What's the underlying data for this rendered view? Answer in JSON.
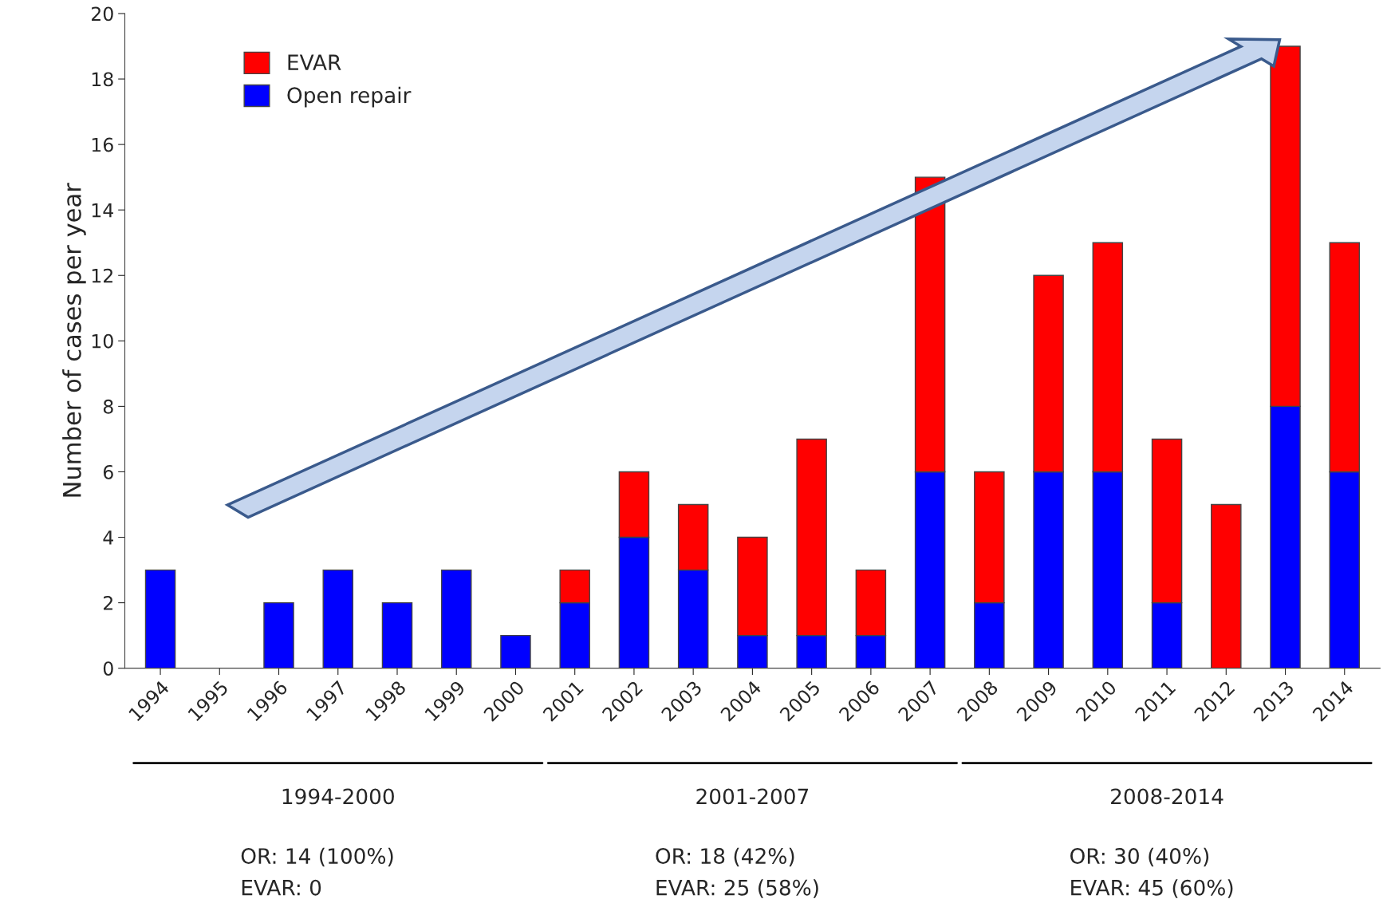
{
  "chart_data": {
    "type": "bar",
    "stacked": true,
    "categories": [
      "1994",
      "1995",
      "1996",
      "1997",
      "1998",
      "1999",
      "2000",
      "2001",
      "2002",
      "2003",
      "2004",
      "2005",
      "2006",
      "2007",
      "2008",
      "2009",
      "2010",
      "2011",
      "2012",
      "2013",
      "2014"
    ],
    "series": [
      {
        "name": "Open repair",
        "color": "#0000ff",
        "values": [
          3,
          0,
          2,
          3,
          2,
          3,
          1,
          2,
          4,
          3,
          1,
          1,
          1,
          6,
          2,
          6,
          6,
          2,
          0,
          8,
          6
        ]
      },
      {
        "name": "EVAR",
        "color": "#ff0000",
        "values": [
          0,
          0,
          0,
          0,
          0,
          0,
          0,
          1,
          2,
          2,
          3,
          6,
          2,
          9,
          4,
          6,
          7,
          5,
          5,
          11,
          7
        ]
      }
    ],
    "ylabel": "Number of cases per year",
    "ylim": [
      0,
      20
    ],
    "yticks": [
      0,
      2,
      4,
      6,
      8,
      10,
      12,
      14,
      16,
      18,
      20
    ],
    "grid": false,
    "legend": "top left",
    "annotations": [
      "1994-2000",
      "OR: 14 (100%)",
      "EVAR: 0",
      "2001-2007",
      "OR: 18 (42%)",
      "EVAR: 25 (58%)",
      "2008-2014",
      "OR: 30 (40%)",
      "EVAR: 45 (60%)"
    ]
  }
}
